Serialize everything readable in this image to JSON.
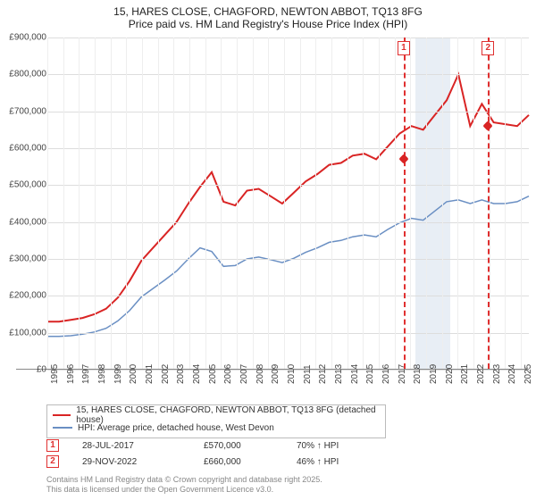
{
  "title_line1": "15, HARES CLOSE, CHAGFORD, NEWTON ABBOT, TQ13 8FG",
  "title_line2": "Price paid vs. HM Land Registry's House Price Index (HPI)",
  "chart": {
    "type": "line",
    "ylim": [
      0,
      900000
    ],
    "ytick_step": 100000,
    "y_labels": [
      "£0",
      "£100,000",
      "£200,000",
      "£300,000",
      "£400,000",
      "£500,000",
      "£600,000",
      "£700,000",
      "£800,000",
      "£900,000"
    ],
    "x_years": [
      1995,
      1996,
      1997,
      1998,
      1999,
      2000,
      2001,
      2002,
      2003,
      2004,
      2005,
      2006,
      2007,
      2008,
      2009,
      2010,
      2011,
      2012,
      2013,
      2014,
      2015,
      2016,
      2017,
      2018,
      2019,
      2020,
      2021,
      2022,
      2023,
      2024,
      2025
    ],
    "background_color": "#ffffff",
    "grid_color": "#dddddd",
    "series": [
      {
        "name": "red",
        "color": "#d92424",
        "width": 2,
        "label": "15, HARES CLOSE, CHAGFORD, NEWTON ABBOT, TQ13 8FG (detached house)",
        "values": [
          130,
          130,
          135,
          140,
          150,
          165,
          195,
          240,
          295,
          330,
          365,
          400,
          450,
          495,
          535,
          455,
          445,
          485,
          490,
          470,
          450,
          480,
          510,
          530,
          555,
          560,
          580,
          585,
          570,
          605,
          640,
          660,
          650,
          690,
          730,
          800,
          660,
          720,
          670,
          665,
          660,
          690
        ]
      },
      {
        "name": "blue",
        "color": "#6a8fc3",
        "width": 1.5,
        "label": "HPI: Average price, detached house, West Devon",
        "values": [
          90,
          90,
          92,
          96,
          102,
          112,
          132,
          160,
          197,
          220,
          243,
          267,
          300,
          330,
          320,
          280,
          282,
          300,
          305,
          298,
          290,
          302,
          318,
          330,
          345,
          350,
          360,
          365,
          360,
          380,
          398,
          410,
          405,
          430,
          455,
          460,
          450,
          460,
          450,
          450,
          455,
          470
        ]
      }
    ],
    "marker_band": {
      "start_year": 2018.3,
      "end_year": 2020.5,
      "color": "#e8eef5"
    },
    "markers": [
      {
        "num": "1",
        "year": 2017.57,
        "date": "28-JUL-2017",
        "price": "£570,000",
        "above_hpi": "70% ↑ HPI",
        "dot_color": "#d92424",
        "dot_y": 570
      },
      {
        "num": "2",
        "year": 2022.91,
        "date": "29-NOV-2022",
        "price": "£660,000",
        "above_hpi": "46% ↑ HPI",
        "dot_color": "#d92424",
        "dot_y": 660
      }
    ]
  },
  "footer_line1": "Contains HM Land Registry data © Crown copyright and database right 2025.",
  "footer_line2": "This data is licensed under the Open Government Licence v3.0."
}
